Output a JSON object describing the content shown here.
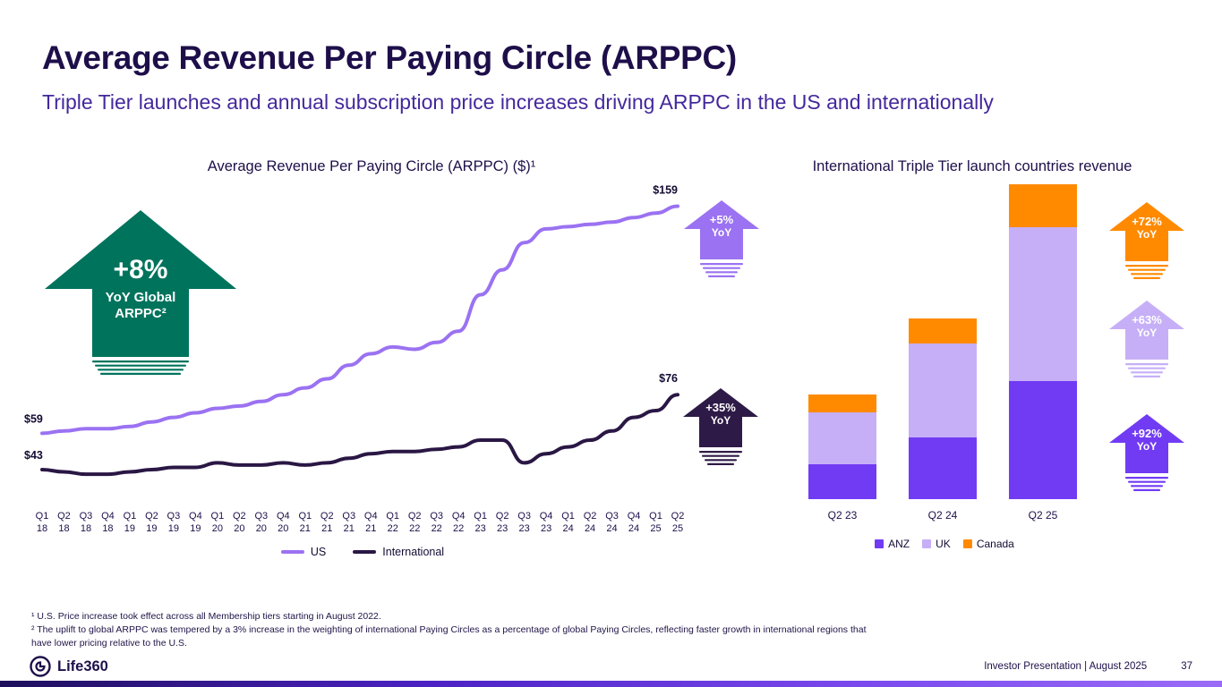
{
  "slide": {
    "title": "Average Revenue Per Paying Circle (ARPPC)",
    "subtitle": "Triple Tier launches and annual subscription price increases driving ARPPC in the US and internationally"
  },
  "annotations": {
    "global_arppc": {
      "value": "+8%",
      "line1": "YoY Global",
      "line2": "ARPPC²",
      "color": "#00735C"
    },
    "us_yoy": {
      "value": "+5%",
      "line1": "YoY",
      "color": "#9B72F2"
    },
    "intl_yoy": {
      "value": "+35%",
      "line1": "YoY",
      "color": "#2E1A47"
    },
    "canada_yoy": {
      "value": "+72%",
      "line1": "YoY",
      "color": "#FF8A00"
    },
    "uk_yoy": {
      "value": "+63%",
      "line1": "YoY",
      "color": "#C6AFF7"
    },
    "anz_yoy": {
      "value": "+92%",
      "line1": "YoY",
      "color": "#713BF4"
    }
  },
  "chart_data": [
    {
      "type": "line",
      "title": "Average Revenue Per Paying Circle (ARPPC) ($)¹",
      "categories": [
        "Q1 18",
        "Q2 18",
        "Q3 18",
        "Q4 18",
        "Q1 19",
        "Q2 19",
        "Q3 19",
        "Q4 19",
        "Q1 20",
        "Q2 20",
        "Q3 20",
        "Q4 20",
        "Q1 21",
        "Q2 21",
        "Q3 21",
        "Q4 21",
        "Q1 22",
        "Q2 22",
        "Q3 22",
        "Q4 22",
        "Q1 23",
        "Q2 23",
        "Q3 23",
        "Q4 23",
        "Q1 24",
        "Q2 24",
        "Q3 24",
        "Q4 24",
        "Q1 25",
        "Q2 25"
      ],
      "ylim": [
        30,
        160
      ],
      "unit": "USD per paying circle (annualized)",
      "grid": false,
      "legend_position": "bottom",
      "series": [
        {
          "name": "US",
          "color": "#9B72F2",
          "values": [
            59,
            60,
            61,
            61,
            62,
            64,
            66,
            68,
            70,
            71,
            73,
            76,
            79,
            83,
            89,
            94,
            97,
            96,
            99,
            104,
            120,
            131,
            143,
            149,
            150,
            151,
            152,
            154,
            156,
            159
          ]
        },
        {
          "name": "International",
          "color": "#2A1744",
          "values": [
            43,
            42,
            41,
            41,
            42,
            43,
            44,
            44,
            46,
            45,
            45,
            46,
            45,
            46,
            48,
            50,
            51,
            51,
            52,
            53,
            56,
            56,
            46,
            50,
            53,
            56,
            60,
            66,
            69,
            76
          ]
        }
      ],
      "point_labels": {
        "us_start": "$59",
        "us_end": "$159",
        "intl_start": "$43",
        "intl_end": "$76"
      }
    },
    {
      "type": "bar",
      "stacked": true,
      "title": "International Triple Tier launch countries revenue",
      "categories": [
        "Q2 23",
        "Q2 24",
        "Q2 25"
      ],
      "unit": "relative revenue (no value axis shown)",
      "grid": false,
      "legend_position": "bottom",
      "series": [
        {
          "name": "ANZ",
          "color": "#713BF4",
          "values": [
            39,
            69,
            132
          ]
        },
        {
          "name": "UK",
          "color": "#C6AFF7",
          "values": [
            58,
            105,
            172
          ]
        },
        {
          "name": "Canada",
          "color": "#FF8A00",
          "values": [
            20,
            28,
            48
          ]
        }
      ]
    }
  ],
  "footnotes": {
    "note1": "¹ U.S. Price increase took effect across all Membership tiers starting in August 2022.",
    "note2": "² The uplift to global ARPPC was tempered by a 3% increase in the weighting of international Paying Circles as a percentage of global Paying Circles, reflecting faster growth in international regions that have lower pricing relative to the U.S."
  },
  "footer": {
    "brand": "Life360",
    "presentation": "Investor Presentation | August 2025",
    "page": "37"
  }
}
